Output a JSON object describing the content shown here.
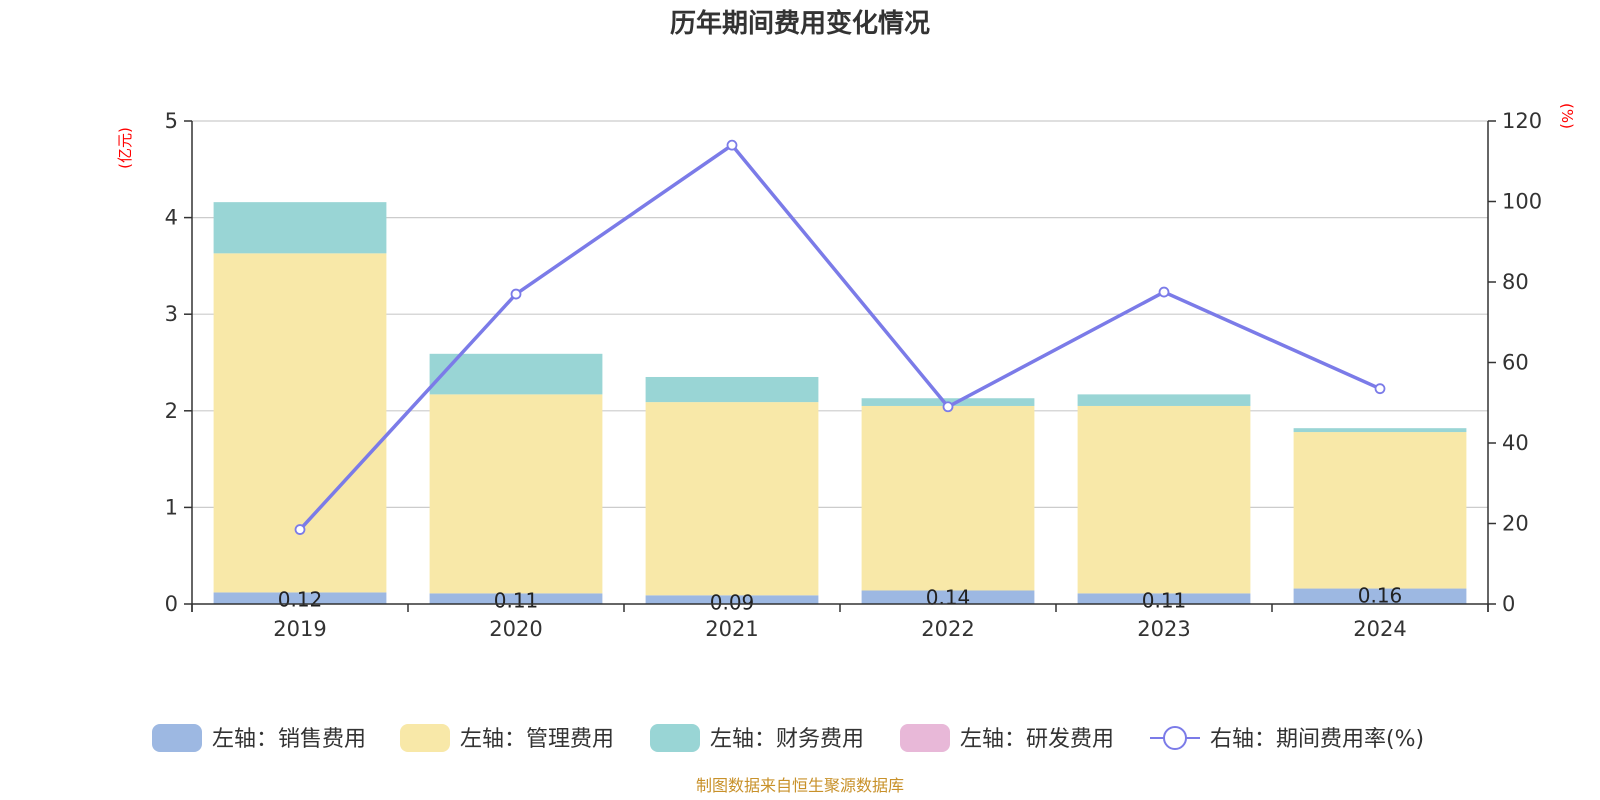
{
  "chart_data": {
    "type": "bar",
    "title": "历年期间费用变化情况",
    "categories": [
      "2019",
      "2020",
      "2021",
      "2022",
      "2023",
      "2024"
    ],
    "left_axis": {
      "unit": "(亿元)",
      "ylim": [
        0,
        5
      ],
      "ticks": [
        "0",
        "1",
        "2",
        "3",
        "4",
        "5"
      ]
    },
    "right_axis": {
      "unit": "(%)",
      "ylim": [
        0,
        120
      ],
      "ticks": [
        "0",
        "20",
        "40",
        "60",
        "80",
        "100",
        "120"
      ]
    },
    "series": [
      {
        "name": "左轴：销售费用",
        "axis": "left",
        "kind": "bar",
        "color": "#9db8e2",
        "values": [
          0.12,
          0.11,
          0.09,
          0.14,
          0.11,
          0.16
        ],
        "labels": [
          "0.12",
          "0.11",
          "0.09",
          "0.14",
          "0.11",
          "0.16"
        ]
      },
      {
        "name": "左轴：管理费用",
        "axis": "left",
        "kind": "bar",
        "color": "#f8e8a8",
        "values": [
          3.51,
          2.06,
          2.0,
          1.91,
          1.94,
          1.62
        ]
      },
      {
        "name": "左轴：财务费用",
        "axis": "left",
        "kind": "bar",
        "color": "#99d5d5",
        "values": [
          0.53,
          0.42,
          0.26,
          0.08,
          0.12,
          0.04
        ]
      },
      {
        "name": "左轴：研发费用",
        "axis": "left",
        "kind": "bar",
        "color": "#e8b8d8",
        "values": [
          0,
          0,
          0,
          0,
          0,
          0
        ]
      },
      {
        "name": "右轴：期间费用率(%)",
        "axis": "right",
        "kind": "line",
        "color": "#7b7be8",
        "values": [
          18.5,
          77,
          114,
          49,
          77.5,
          53.5
        ]
      }
    ],
    "source": "制图数据来自恒生聚源数据库"
  }
}
